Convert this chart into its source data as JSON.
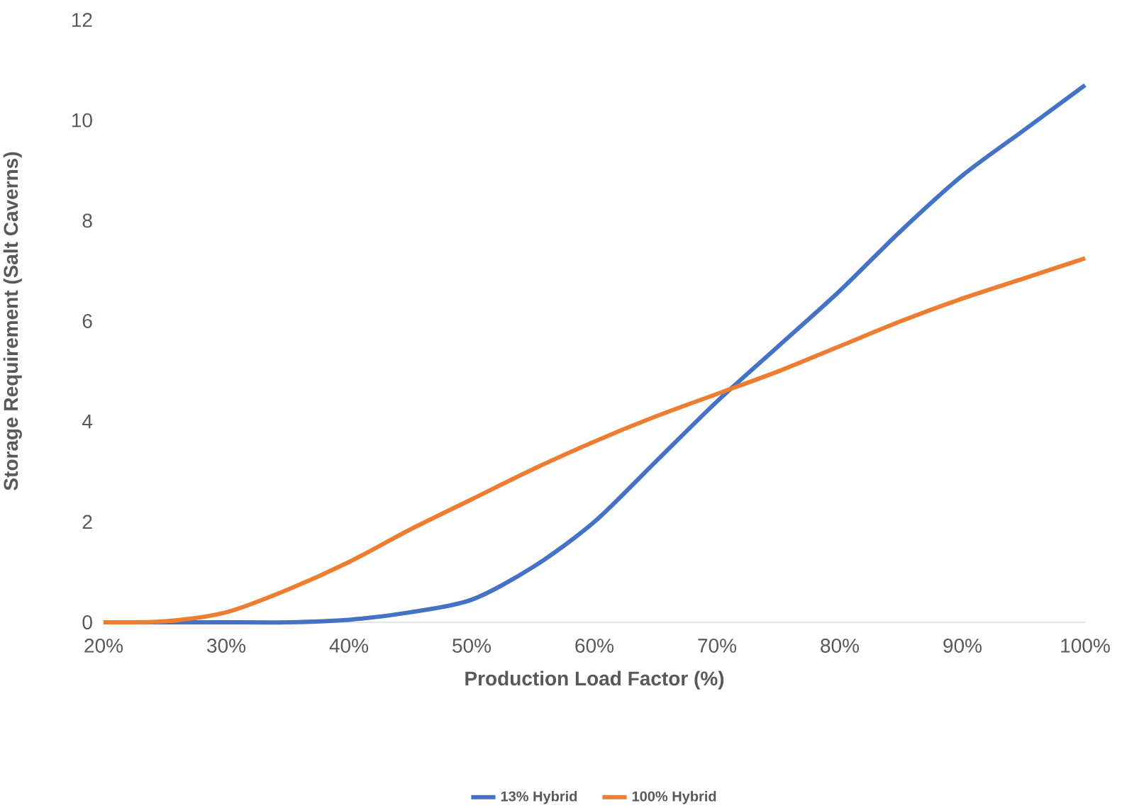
{
  "chart_data": {
    "type": "line",
    "xlabel": "Production Load Factor (%)",
    "ylabel": "Storage Requirement (Salt Caverns)",
    "x": [
      20,
      25,
      30,
      35,
      40,
      45,
      50,
      55,
      60,
      65,
      70,
      75,
      80,
      85,
      90,
      95,
      100
    ],
    "series": [
      {
        "name": "13% Hybrid",
        "color": "#4472c4",
        "values": [
          0,
          0,
          0,
          0,
          0.05,
          0.2,
          0.45,
          1.1,
          2.0,
          3.2,
          4.4,
          5.5,
          6.6,
          7.8,
          8.9,
          9.8,
          10.7
        ]
      },
      {
        "name": "100% Hybrid",
        "color": "#ed7d31",
        "values": [
          0,
          0.02,
          0.2,
          0.65,
          1.2,
          1.85,
          2.45,
          3.05,
          3.6,
          4.1,
          4.55,
          5.0,
          5.5,
          6.0,
          6.45,
          6.85,
          7.25
        ]
      }
    ],
    "xlim": [
      20,
      100
    ],
    "ylim": [
      0,
      12
    ],
    "xticks": [
      {
        "value": 20,
        "label": "20%"
      },
      {
        "value": 30,
        "label": "30%"
      },
      {
        "value": 40,
        "label": "40%"
      },
      {
        "value": 50,
        "label": "50%"
      },
      {
        "value": 60,
        "label": "60%"
      },
      {
        "value": 70,
        "label": "70%"
      },
      {
        "value": 80,
        "label": "80%"
      },
      {
        "value": 90,
        "label": "90%"
      },
      {
        "value": 100,
        "label": "100%"
      }
    ],
    "yticks": [
      0,
      2,
      4,
      6,
      8,
      10,
      12
    ],
    "grid": false,
    "legend": "bottom",
    "marker": "none",
    "line_style": "solid"
  }
}
